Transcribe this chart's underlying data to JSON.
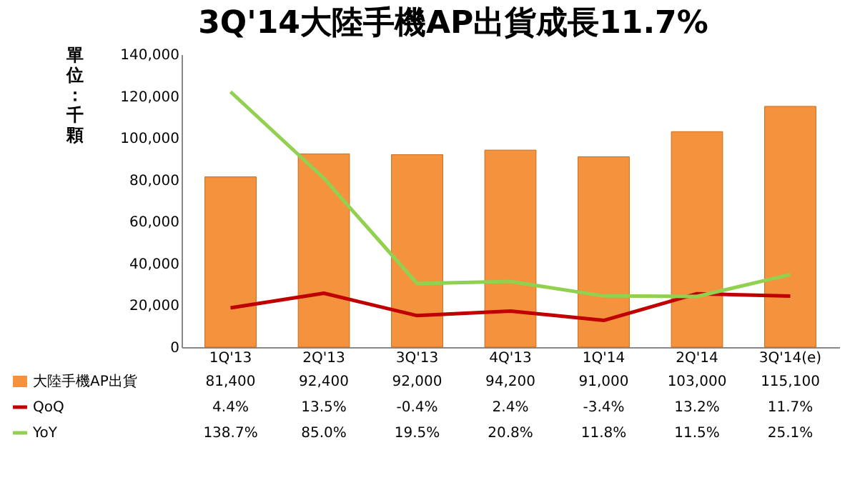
{
  "chart_data": {
    "type": "bar",
    "title": "3Q'14大陸手機AP出貨成長11.7%",
    "ylabel": "單位：千顆",
    "categories": [
      "1Q'13",
      "2Q'13",
      "3Q'13",
      "4Q'13",
      "1Q'14",
      "2Q'14",
      "3Q'14(e)"
    ],
    "series": [
      {
        "name": "大陸手機AP出貨",
        "color": "#f5923e",
        "values": [
          81400,
          92400,
          92000,
          94200,
          91000,
          103000,
          115100
        ],
        "value_labels": [
          "81,400",
          "92,400",
          "92,000",
          "94,200",
          "91,000",
          "103,000",
          "115,100"
        ]
      },
      {
        "name": "QoQ",
        "type": "line",
        "axis": "y2",
        "color": "#c00000",
        "values": [
          4.4,
          13.5,
          -0.4,
          2.4,
          -3.4,
          13.2,
          11.7
        ],
        "value_labels": [
          "4.4%",
          "13.5%",
          "-0.4%",
          "2.4%",
          "-3.4%",
          "13.2%",
          "11.7%"
        ]
      },
      {
        "name": "YoY",
        "type": "line",
        "axis": "y2",
        "color": "#92d050",
        "values": [
          138.7,
          85.0,
          19.5,
          20.8,
          11.8,
          11.5,
          25.1
        ],
        "value_labels": [
          "138.7%",
          "85.0%",
          "19.5%",
          "20.8%",
          "11.8%",
          "11.5%",
          "25.1%"
        ]
      }
    ],
    "ylim": [
      0,
      140000
    ],
    "yticks": [
      0,
      {
        "value": 20000,
        "label": "20,000"
      },
      {
        "value": 40000,
        "label": "40,000"
      },
      {
        "value": 60000,
        "label": "60,000"
      },
      {
        "value": 80000,
        "label": "80,000"
      },
      {
        "value": 100000,
        "label": "100,000"
      },
      {
        "value": 120000,
        "label": "120,000"
      },
      {
        "value": 140000,
        "label": "140,000"
      }
    ],
    "y2lim": [
      -20,
      162
    ],
    "grid": false,
    "legend": "bottom"
  }
}
